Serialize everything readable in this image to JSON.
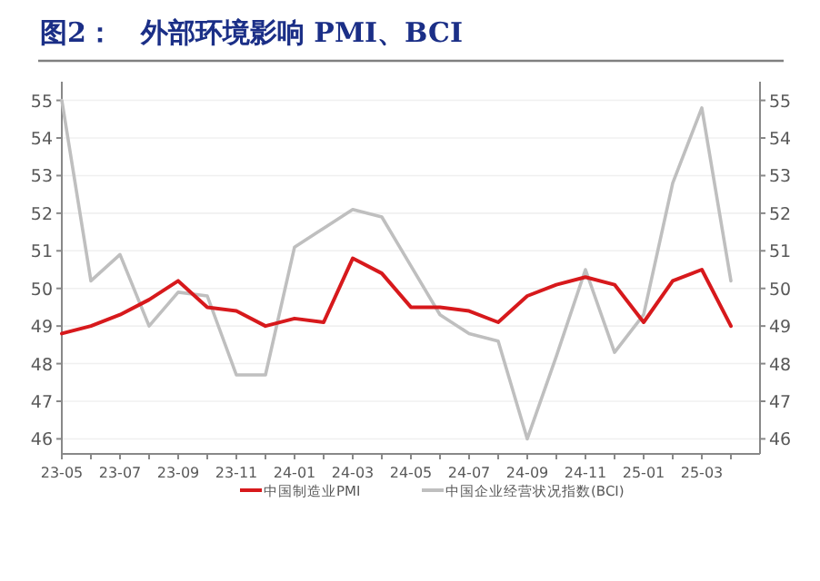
{
  "chart_data": {
    "type": "line",
    "title": "图2：　外部环境影响 PMI、BCI",
    "categories": [
      "23-05",
      null,
      "23-07",
      null,
      "23-09",
      null,
      "23-11",
      null,
      "24-01",
      null,
      "24-03",
      null,
      "24-05",
      null,
      "24-07",
      null,
      "24-09",
      null,
      "24-11",
      null,
      "25-01",
      null,
      "25-03",
      null
    ],
    "series": [
      {
        "name": "中国制造业PMI",
        "color": "#d7191c",
        "values": [
          48.8,
          49.0,
          49.3,
          49.7,
          50.2,
          49.5,
          49.4,
          49.0,
          49.2,
          49.1,
          50.8,
          50.4,
          49.5,
          49.5,
          49.4,
          49.1,
          49.8,
          50.1,
          50.3,
          50.1,
          49.1,
          50.2,
          50.5,
          49.0
        ]
      },
      {
        "name": "中国企业经营状况指数(BCI)",
        "color": "#bfbfbf",
        "values": [
          55.0,
          50.2,
          50.9,
          49.0,
          49.9,
          49.8,
          47.7,
          47.7,
          51.1,
          51.6,
          52.1,
          51.9,
          50.6,
          49.3,
          48.8,
          48.6,
          46.0,
          48.2,
          50.5,
          48.3,
          49.3,
          52.8,
          54.8,
          50.2
        ]
      }
    ],
    "ylim": [
      45.6,
      55.4
    ],
    "yticks": [
      46,
      47,
      48,
      49,
      50,
      51,
      52,
      53,
      54,
      55
    ],
    "y2lim": [
      45.6,
      55.4
    ],
    "y2ticks": [
      46,
      47,
      48,
      49,
      50,
      51,
      52,
      53,
      54,
      55
    ],
    "grid": "y",
    "legend": "bottom",
    "marker": "none",
    "line_style": "solid"
  }
}
